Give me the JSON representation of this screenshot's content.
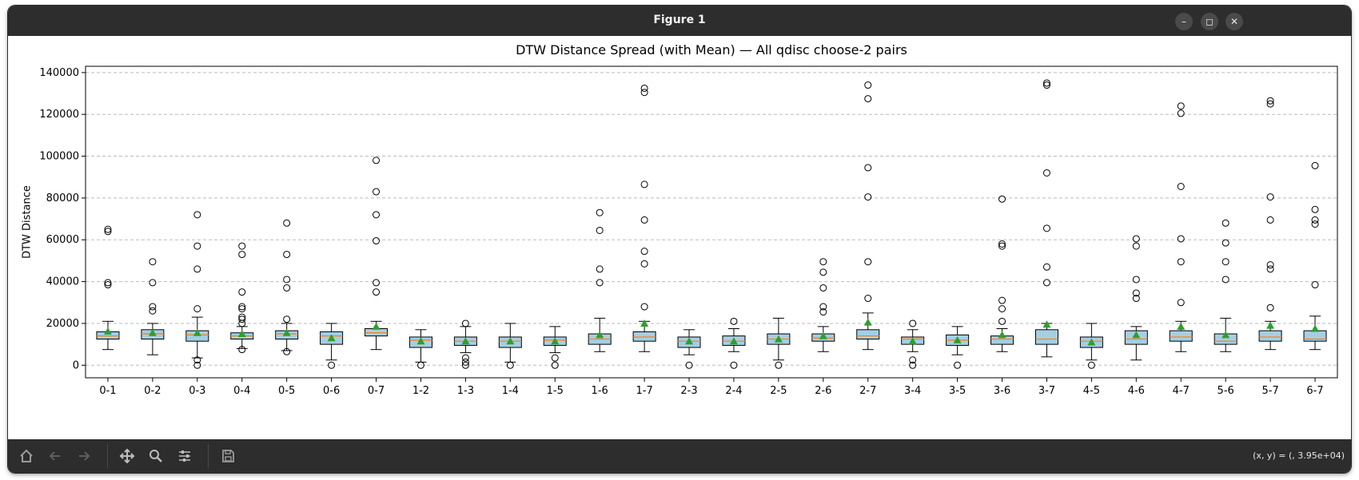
{
  "window": {
    "title": "Figure 1",
    "icons": {
      "minimize": "minimize-icon",
      "maximize": "maximize-icon",
      "close": "close-icon"
    }
  },
  "toolbar": {
    "buttons": [
      {
        "name": "home-button",
        "icon": "home-icon"
      },
      {
        "name": "back-button",
        "icon": "back-arrow-icon"
      },
      {
        "name": "forward-button",
        "icon": "forward-arrow-icon"
      },
      {
        "name": "pan-button",
        "icon": "move-icon"
      },
      {
        "name": "zoom-button",
        "icon": "magnifier-icon"
      },
      {
        "name": "configure-subplots-button",
        "icon": "sliders-icon"
      },
      {
        "name": "save-button",
        "icon": "floppy-disk-icon"
      }
    ],
    "coords": "(x, y) = (, 3.95e+04)"
  },
  "colors": {
    "box_fill": "#a6cee3",
    "median": "#ff7f0e",
    "mean": "#2ca02c",
    "grid": "#bbbbbb",
    "chrome": "#2d2d2d"
  },
  "chart_data": {
    "type": "box",
    "title": "DTW Distance Spread (with Mean) — All qdisc choose-2 pairs",
    "xlabel": "",
    "ylabel": "DTW Distance",
    "ylim": [
      -6000,
      143000
    ],
    "yticks": [
      0,
      20000,
      40000,
      60000,
      80000,
      100000,
      120000,
      140000
    ],
    "ytick_labels": [
      "0",
      "20000",
      "40000",
      "60000",
      "80000",
      "100000",
      "120000",
      "140000"
    ],
    "grid": "horizontal dashed",
    "legend": "none",
    "categories": [
      "0-1",
      "0-2",
      "0-3",
      "0-4",
      "0-5",
      "0-6",
      "0-7",
      "1-2",
      "1-3",
      "1-4",
      "1-5",
      "1-6",
      "1-7",
      "2-3",
      "2-4",
      "2-5",
      "2-6",
      "2-7",
      "3-4",
      "3-5",
      "3-6",
      "3-7",
      "4-5",
      "4-6",
      "4-7",
      "5-6",
      "5-7",
      "6-7"
    ],
    "boxes": [
      {
        "whislo": 7500,
        "q1": 12500,
        "med": 14000,
        "q3": 16000,
        "whishi": 21000,
        "mean": 16200,
        "fliers": [
          65000,
          64000,
          39500,
          38500
        ]
      },
      {
        "whislo": 5000,
        "q1": 12500,
        "med": 15000,
        "q3": 17000,
        "whishi": 20000,
        "mean": 15500,
        "fliers": [
          49500,
          39500,
          28000,
          26000
        ]
      },
      {
        "whislo": 3500,
        "q1": 11500,
        "med": 14500,
        "q3": 16500,
        "whishi": 23000,
        "mean": 15500,
        "fliers": [
          72000,
          57000,
          46000,
          27000,
          2500,
          0
        ]
      },
      {
        "whislo": 8000,
        "q1": 12500,
        "med": 14000,
        "q3": 15500,
        "whishi": 18500,
        "mean": 15000,
        "fliers": [
          57000,
          53000,
          35000,
          28000,
          27000,
          23000,
          22000,
          20000,
          7500
        ]
      },
      {
        "whislo": 7000,
        "q1": 12500,
        "med": 15000,
        "q3": 16500,
        "whishi": 20000,
        "mean": 15500,
        "fliers": [
          68000,
          53000,
          41000,
          37000,
          22000,
          6500
        ]
      },
      {
        "whislo": 2500,
        "q1": 10000,
        "med": 14000,
        "q3": 16000,
        "whishi": 20000,
        "mean": 13000,
        "fliers": [
          0
        ]
      },
      {
        "whislo": 7500,
        "q1": 14000,
        "med": 15500,
        "q3": 17500,
        "whishi": 21000,
        "mean": 18500,
        "fliers": [
          98000,
          83000,
          72000,
          59500,
          39500,
          35000
        ]
      },
      {
        "whislo": 1500,
        "q1": 8500,
        "med": 12000,
        "q3": 13500,
        "whishi": 17000,
        "mean": 11500,
        "fliers": [
          0
        ]
      },
      {
        "whislo": 6000,
        "q1": 9500,
        "med": 11500,
        "q3": 13500,
        "whishi": 18500,
        "mean": 11500,
        "fliers": [
          20000,
          3500,
          1500,
          0
        ]
      },
      {
        "whislo": 1500,
        "q1": 8500,
        "med": 11500,
        "q3": 13500,
        "whishi": 20000,
        "mean": 11500,
        "fliers": [
          0
        ]
      },
      {
        "whislo": 6000,
        "q1": 9500,
        "med": 12000,
        "q3": 13500,
        "whishi": 18500,
        "mean": 11500,
        "fliers": [
          3500,
          0
        ]
      },
      {
        "whislo": 6500,
        "q1": 10000,
        "med": 12500,
        "q3": 15000,
        "whishi": 22500,
        "mean": 14500,
        "fliers": [
          73000,
          64500,
          46000,
          39500
        ]
      },
      {
        "whislo": 6500,
        "q1": 11500,
        "med": 13500,
        "q3": 16000,
        "whishi": 21000,
        "mean": 20000,
        "fliers": [
          132500,
          130500,
          86500,
          69500,
          54500,
          48500,
          28000
        ]
      },
      {
        "whislo": 5000,
        "q1": 8500,
        "med": 11500,
        "q3": 13500,
        "whishi": 17000,
        "mean": 11500,
        "fliers": [
          0
        ]
      },
      {
        "whislo": 6500,
        "q1": 9500,
        "med": 11500,
        "q3": 14000,
        "whishi": 17500,
        "mean": 11500,
        "fliers": [
          21000,
          0
        ]
      },
      {
        "whislo": 2500,
        "q1": 10000,
        "med": 12500,
        "q3": 15000,
        "whishi": 22500,
        "mean": 12500,
        "fliers": [
          0
        ]
      },
      {
        "whislo": 6500,
        "q1": 11500,
        "med": 13000,
        "q3": 15000,
        "whishi": 18500,
        "mean": 14000,
        "fliers": [
          49500,
          44500,
          37000,
          28000,
          25500
        ]
      },
      {
        "whislo": 7500,
        "q1": 12500,
        "med": 14000,
        "q3": 17000,
        "whishi": 25000,
        "mean": 20500,
        "fliers": [
          134000,
          127500,
          94500,
          80500,
          49500,
          32000
        ]
      },
      {
        "whislo": 6500,
        "q1": 10000,
        "med": 12500,
        "q3": 13500,
        "whishi": 17000,
        "mean": 11500,
        "fliers": [
          20000,
          2500,
          0
        ]
      },
      {
        "whislo": 5000,
        "q1": 9500,
        "med": 12000,
        "q3": 14500,
        "whishi": 18500,
        "mean": 12000,
        "fliers": [
          0
        ]
      },
      {
        "whislo": 6500,
        "q1": 10000,
        "med": 12500,
        "q3": 14000,
        "whishi": 17500,
        "mean": 14500,
        "fliers": [
          79500,
          58000,
          57000,
          31000,
          27000,
          21000
        ]
      },
      {
        "whislo": 4000,
        "q1": 10000,
        "med": 12500,
        "q3": 17000,
        "whishi": 20000,
        "mean": 19500,
        "fliers": [
          135000,
          134000,
          92000,
          65500,
          47000,
          39500
        ]
      },
      {
        "whislo": 2500,
        "q1": 8500,
        "med": 11500,
        "q3": 13500,
        "whishi": 20000,
        "mean": 11000,
        "fliers": [
          0
        ]
      },
      {
        "whislo": 2500,
        "q1": 10000,
        "med": 12500,
        "q3": 16500,
        "whishi": 18500,
        "mean": 14500,
        "fliers": [
          60500,
          57000,
          41000,
          34500,
          32000
        ]
      },
      {
        "whislo": 6500,
        "q1": 11500,
        "med": 13500,
        "q3": 16500,
        "whishi": 21000,
        "mean": 18500,
        "fliers": [
          124000,
          120500,
          85500,
          60500,
          49500,
          30000
        ]
      },
      {
        "whislo": 6500,
        "q1": 10000,
        "med": 11500,
        "q3": 15000,
        "whishi": 22500,
        "mean": 14500,
        "fliers": [
          68000,
          58500,
          49500,
          41000
        ]
      },
      {
        "whislo": 7500,
        "q1": 11500,
        "med": 13500,
        "q3": 16500,
        "whishi": 21000,
        "mean": 19000,
        "fliers": [
          126500,
          125000,
          80500,
          69500,
          48000,
          46000,
          27500
        ]
      },
      {
        "whislo": 7500,
        "q1": 11500,
        "med": 12500,
        "q3": 16500,
        "whishi": 23500,
        "mean": 17500,
        "fliers": [
          95500,
          74500,
          69500,
          67500,
          38500
        ]
      }
    ]
  }
}
